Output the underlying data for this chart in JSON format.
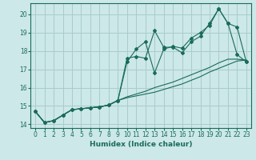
{
  "xlabel": "Humidex (Indice chaleur)",
  "background_color": "#cce8e8",
  "grid_color": "#aacccc",
  "line_color": "#1a6b5a",
  "xlim": [
    -0.5,
    23.5
  ],
  "ylim": [
    13.8,
    20.6
  ],
  "xticks": [
    0,
    1,
    2,
    3,
    4,
    5,
    6,
    7,
    8,
    9,
    10,
    11,
    12,
    13,
    14,
    15,
    16,
    17,
    18,
    19,
    20,
    21,
    22,
    23
  ],
  "yticks": [
    14,
    15,
    16,
    17,
    18,
    19,
    20
  ],
  "series": {
    "line1": [
      14.7,
      14.1,
      14.2,
      14.5,
      14.8,
      14.85,
      14.9,
      14.95,
      15.05,
      15.3,
      17.6,
      17.7,
      17.6,
      19.1,
      18.2,
      18.2,
      17.9,
      18.5,
      18.8,
      19.5,
      20.3,
      19.5,
      17.8,
      17.4
    ],
    "line2": [
      14.7,
      14.1,
      14.2,
      14.5,
      14.8,
      14.85,
      14.9,
      14.95,
      15.05,
      15.3,
      17.4,
      18.1,
      18.5,
      16.8,
      18.1,
      18.25,
      18.15,
      18.7,
      19.0,
      19.4,
      20.3,
      19.5,
      19.3,
      17.4
    ],
    "line3": [
      14.7,
      14.1,
      14.2,
      14.5,
      14.8,
      14.85,
      14.9,
      14.95,
      15.05,
      15.3,
      15.45,
      15.55,
      15.65,
      15.75,
      15.9,
      16.05,
      16.2,
      16.4,
      16.6,
      16.85,
      17.05,
      17.25,
      17.45,
      17.5
    ],
    "line4": [
      14.7,
      14.1,
      14.2,
      14.5,
      14.8,
      14.85,
      14.9,
      14.95,
      15.05,
      15.3,
      15.5,
      15.65,
      15.8,
      16.0,
      16.15,
      16.3,
      16.5,
      16.7,
      16.9,
      17.1,
      17.35,
      17.55,
      17.55,
      17.5
    ]
  }
}
